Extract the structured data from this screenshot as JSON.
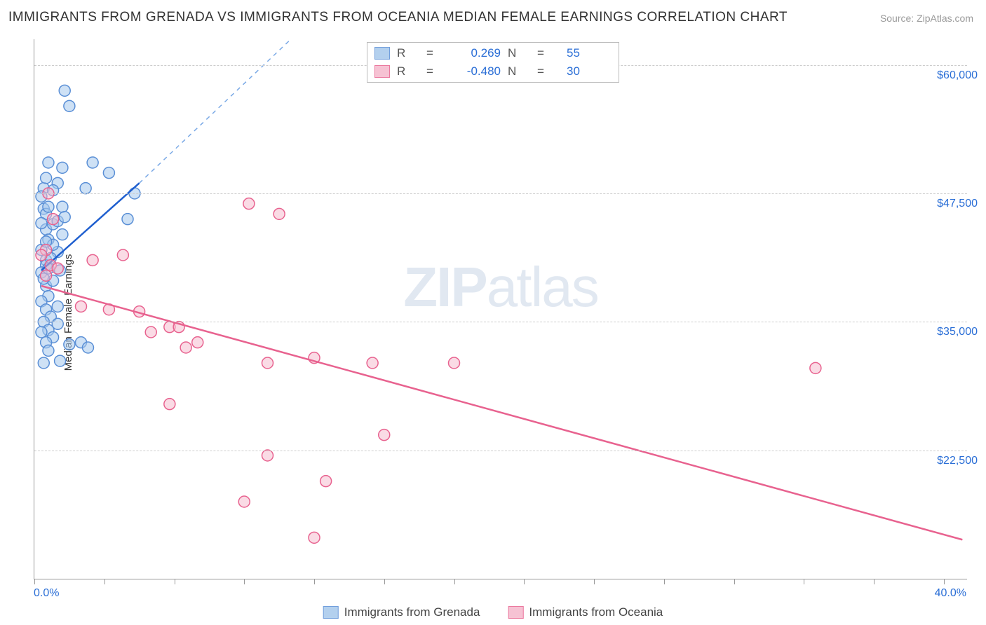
{
  "title": "IMMIGRANTS FROM GRENADA VS IMMIGRANTS FROM OCEANIA MEDIAN FEMALE EARNINGS CORRELATION CHART",
  "source": "Source: ZipAtlas.com",
  "watermark_zip": "ZIP",
  "watermark_atlas": "atlas",
  "y_axis_label": "Median Female Earnings",
  "chart": {
    "type": "scatter",
    "xlim": [
      0,
      40
    ],
    "ylim": [
      10000,
      62500
    ],
    "x_start_label": "0.0%",
    "x_end_label": "40.0%",
    "y_tick_values": [
      22500,
      35000,
      47500,
      60000
    ],
    "y_tick_labels": [
      "$22,500",
      "$35,000",
      "$47,500",
      "$60,000"
    ],
    "x_tick_positions": [
      0,
      3,
      6,
      9,
      12,
      15,
      18,
      21,
      24,
      27,
      30,
      33,
      36,
      39
    ],
    "background_color": "#ffffff",
    "grid_color": "#cccccc",
    "marker_radius": 8,
    "series": [
      {
        "name": "Immigrants from Grenada",
        "fill": "#a6c8ec",
        "stroke": "#5a8fd6",
        "fill_opacity": 0.55,
        "R": "0.269",
        "N": "55",
        "trend": {
          "x1": 0.3,
          "y1": 40000,
          "x2": 4.5,
          "y2": 48500,
          "color": "#1f5fcf",
          "width": 2.5,
          "dash_ext": {
            "x2": 11,
            "y2": 62500,
            "color": "#7aa9e6"
          }
        },
        "points": [
          [
            0.5,
            41000
          ],
          [
            0.5,
            44000
          ],
          [
            0.4,
            46000
          ],
          [
            0.4,
            48000
          ],
          [
            0.6,
            50500
          ],
          [
            1.0,
            48500
          ],
          [
            1.2,
            50000
          ],
          [
            1.5,
            56000
          ],
          [
            1.3,
            57500
          ],
          [
            2.5,
            50500
          ],
          [
            2.2,
            48000
          ],
          [
            3.2,
            49500
          ],
          [
            4.3,
            47500
          ],
          [
            4.0,
            45000
          ],
          [
            0.6,
            43000
          ],
          [
            0.8,
            44500
          ],
          [
            0.3,
            42000
          ],
          [
            0.5,
            40500
          ],
          [
            1.0,
            41800
          ],
          [
            1.1,
            40000
          ],
          [
            0.3,
            39800
          ],
          [
            0.5,
            38500
          ],
          [
            0.8,
            39000
          ],
          [
            0.6,
            37500
          ],
          [
            0.3,
            37000
          ],
          [
            0.5,
            36200
          ],
          [
            0.7,
            35500
          ],
          [
            1.0,
            36500
          ],
          [
            0.4,
            35000
          ],
          [
            0.6,
            34200
          ],
          [
            0.3,
            34000
          ],
          [
            0.8,
            33500
          ],
          [
            1.0,
            34800
          ],
          [
            0.5,
            33000
          ],
          [
            2.0,
            33000
          ],
          [
            2.3,
            32500
          ],
          [
            0.4,
            31000
          ],
          [
            0.6,
            32200
          ],
          [
            1.1,
            31200
          ],
          [
            1.5,
            32800
          ],
          [
            0.5,
            45500
          ],
          [
            0.3,
            47200
          ],
          [
            1.2,
            46200
          ],
          [
            0.8,
            47800
          ],
          [
            0.5,
            49000
          ],
          [
            0.4,
            39200
          ],
          [
            0.6,
            40200
          ],
          [
            0.8,
            42500
          ],
          [
            1.2,
            43500
          ],
          [
            0.3,
            44600
          ],
          [
            0.6,
            46200
          ],
          [
            1.0,
            44800
          ],
          [
            0.5,
            42800
          ],
          [
            0.7,
            41200
          ],
          [
            1.3,
            45200
          ]
        ]
      },
      {
        "name": "Immigrants from Oceania",
        "fill": "#f5b8cc",
        "stroke": "#e8628f",
        "fill_opacity": 0.5,
        "R": "-0.480",
        "N": "30",
        "trend": {
          "x1": 0.3,
          "y1": 38500,
          "x2": 39.8,
          "y2": 13800,
          "color": "#e8628f",
          "width": 2.5
        },
        "points": [
          [
            0.6,
            47500
          ],
          [
            0.8,
            45000
          ],
          [
            0.5,
            42000
          ],
          [
            0.3,
            41500
          ],
          [
            0.7,
            40500
          ],
          [
            1.0,
            40200
          ],
          [
            0.5,
            39500
          ],
          [
            2.5,
            41000
          ],
          [
            3.8,
            41500
          ],
          [
            2.0,
            36500
          ],
          [
            3.2,
            36200
          ],
          [
            4.5,
            36000
          ],
          [
            5.8,
            34500
          ],
          [
            5.0,
            34000
          ],
          [
            6.2,
            34500
          ],
          [
            7.0,
            33000
          ],
          [
            6.5,
            32500
          ],
          [
            9.2,
            46500
          ],
          [
            10.5,
            45500
          ],
          [
            10.0,
            31000
          ],
          [
            12.0,
            31500
          ],
          [
            14.5,
            31000
          ],
          [
            18.0,
            31000
          ],
          [
            5.8,
            27000
          ],
          [
            10.0,
            22000
          ],
          [
            9.0,
            17500
          ],
          [
            12.5,
            19500
          ],
          [
            12.0,
            14000
          ],
          [
            15.0,
            24000
          ],
          [
            33.5,
            30500
          ]
        ]
      }
    ]
  },
  "legend_top": {
    "r_label": "R",
    "n_label": "N",
    "equals": "="
  },
  "legend_bottom_labels": [
    "Immigrants from Grenada",
    "Immigrants from Oceania"
  ]
}
